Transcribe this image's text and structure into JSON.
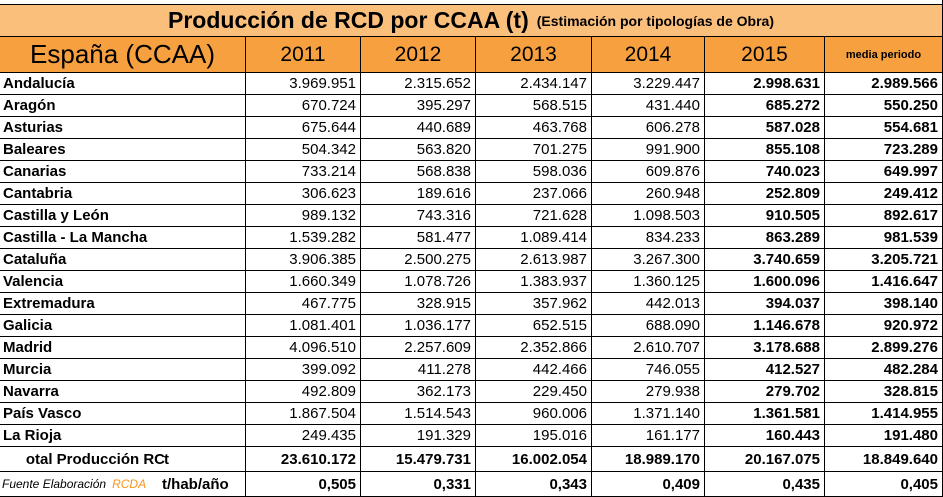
{
  "header": {
    "title": "Producción de RCD por CCAA  (t)",
    "subtitle": "(Estimación por tipologías de Obra)"
  },
  "table": {
    "columns": [
      "España (CCAA)",
      "2011",
      "2012",
      "2013",
      "2014",
      "2015",
      "media periodo"
    ],
    "rows": [
      [
        "Andalucía",
        "3.969.951",
        "2.315.652",
        "2.434.147",
        "3.229.447",
        "2.998.631",
        "2.989.566"
      ],
      [
        "Aragón",
        "670.724",
        "395.297",
        "568.515",
        "431.440",
        "685.272",
        "550.250"
      ],
      [
        "Asturias",
        "675.644",
        "440.689",
        "463.768",
        "606.278",
        "587.028",
        "554.681"
      ],
      [
        "Baleares",
        "504.342",
        "563.820",
        "701.275",
        "991.900",
        "855.108",
        "723.289"
      ],
      [
        "Canarias",
        "733.214",
        "568.838",
        "598.036",
        "609.876",
        "740.023",
        "649.997"
      ],
      [
        "Cantabria",
        "306.623",
        "189.616",
        "237.066",
        "260.948",
        "252.809",
        "249.412"
      ],
      [
        "Castilla y León",
        "989.132",
        "743.316",
        "721.628",
        "1.098.503",
        "910.505",
        "892.617"
      ],
      [
        "Castilla - La Mancha",
        "1.539.282",
        "581.477",
        "1.089.414",
        "834.233",
        "863.289",
        "981.539"
      ],
      [
        "Cataluña",
        "3.906.385",
        "2.500.275",
        "2.613.987",
        "3.267.300",
        "3.740.659",
        "3.205.721"
      ],
      [
        "Valencia",
        "1.660.349",
        "1.078.726",
        "1.383.937",
        "1.360.125",
        "1.600.096",
        "1.416.647"
      ],
      [
        "Extremadura",
        "467.775",
        "328.915",
        "357.962",
        "442.013",
        "394.037",
        "398.140"
      ],
      [
        "Galicia",
        "1.081.401",
        "1.036.177",
        "652.515",
        "688.090",
        "1.146.678",
        "920.972"
      ],
      [
        "Madrid",
        "4.096.510",
        "2.257.609",
        "2.352.866",
        "2.610.707",
        "3.178.688",
        "2.899.276"
      ],
      [
        "Murcia",
        "399.092",
        "411.278",
        "442.466",
        "746.055",
        "412.527",
        "482.284"
      ],
      [
        "Navarra",
        "492.809",
        "362.173",
        "229.450",
        "279.938",
        "279.702",
        "328.815"
      ],
      [
        "País Vasco",
        "1.867.504",
        "1.514.543",
        "960.006",
        "1.371.140",
        "1.361.581",
        "1.414.955"
      ],
      [
        "La Rioja",
        "249.435",
        "191.329",
        "195.016",
        "161.177",
        "160.443",
        "191.480"
      ]
    ],
    "total": {
      "label": "otal Producción RC",
      "unit": "t",
      "values": [
        "23.610.172",
        "15.479.731",
        "16.002.054",
        "18.989.170",
        "20.167.075",
        "18.849.640"
      ]
    },
    "per_capita": {
      "source": "Fuente Elaboración",
      "source_org": "RCDA",
      "unit": "t/hab/año",
      "values": [
        "0,505",
        "0,331",
        "0,343",
        "0,409",
        "0,435",
        "0,405"
      ]
    }
  }
}
